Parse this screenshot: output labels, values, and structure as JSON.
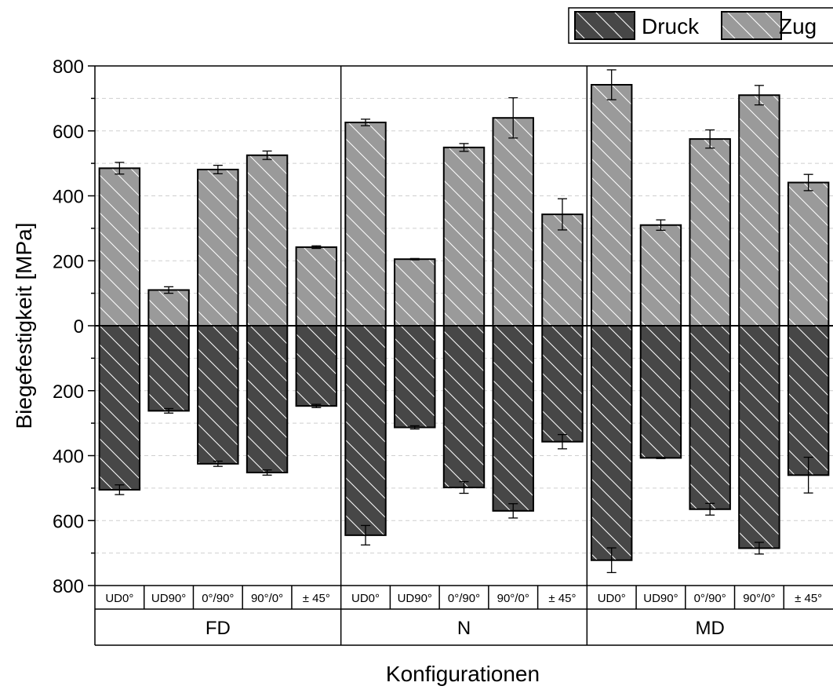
{
  "chart_data": {
    "type": "bar",
    "title": "",
    "xlabel": "Konfigurationen",
    "ylabel": "Biegefestigkeit [MPa]",
    "ylim": [
      -800,
      800
    ],
    "yticks": [
      {
        "value": 800,
        "label": "800"
      },
      {
        "value": 600,
        "label": "600"
      },
      {
        "value": 400,
        "label": "400"
      },
      {
        "value": 200,
        "label": "200"
      },
      {
        "value": 0,
        "label": "0"
      },
      {
        "value": -200,
        "label": "200"
      },
      {
        "value": -400,
        "label": "400"
      },
      {
        "value": -600,
        "label": "600"
      },
      {
        "value": -800,
        "label": "800"
      }
    ],
    "grid": "horizontal dashed",
    "legend_position": "top-right",
    "groups": [
      "FD",
      "N",
      "MD"
    ],
    "categories": [
      "UD0°",
      "UD90°",
      "0°/90°",
      "90°/0°",
      "± 45°"
    ],
    "series": [
      {
        "name": "Druck",
        "color": "#474747",
        "values": [
          [
            -505,
            -262,
            -425,
            -452,
            -247
          ],
          [
            -645,
            -313,
            -498,
            -570,
            -357
          ],
          [
            -722,
            -407,
            -565,
            -685,
            -460
          ]
        ],
        "errors": [
          [
            15,
            7,
            8,
            8,
            5
          ],
          [
            30,
            5,
            18,
            22,
            22
          ],
          [
            38,
            2,
            18,
            18,
            55
          ]
        ]
      },
      {
        "name": "Zug",
        "color": "#9a9a9a",
        "values": [
          [
            485,
            110,
            481,
            525,
            242
          ],
          [
            626,
            205,
            549,
            640,
            343
          ],
          [
            742,
            310,
            575,
            710,
            441
          ]
        ],
        "errors": [
          [
            18,
            10,
            13,
            13,
            4
          ],
          [
            10,
            2,
            12,
            62,
            48
          ],
          [
            46,
            16,
            28,
            30,
            25
          ]
        ]
      }
    ]
  }
}
